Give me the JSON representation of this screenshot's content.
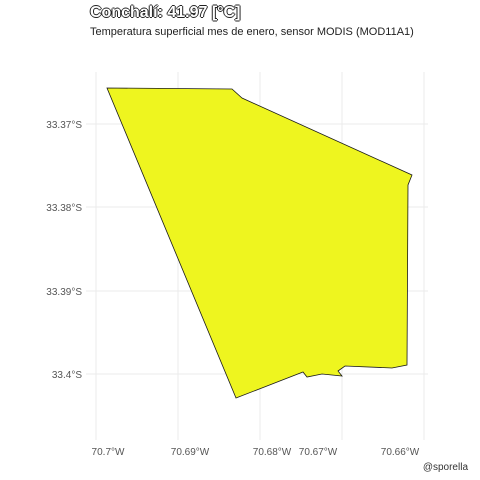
{
  "title": "Conchalí: 41.97 [°C]",
  "subtitle": "Temperatura superficial mes de enero, sensor MODIS (MOD11A1)",
  "caption": "@sporella",
  "colors": {
    "fill": "#eef51f",
    "stroke": "#1a1a1a",
    "grid": "#ebebeb"
  },
  "axes": {
    "x_ticks": [
      "70.7°W",
      "70.69°W",
      "70.68°W",
      "70.67°W",
      "70.66°W"
    ],
    "y_ticks": [
      "33.37°S",
      "33.38°S",
      "33.39°S",
      "33.4°S"
    ]
  }
}
